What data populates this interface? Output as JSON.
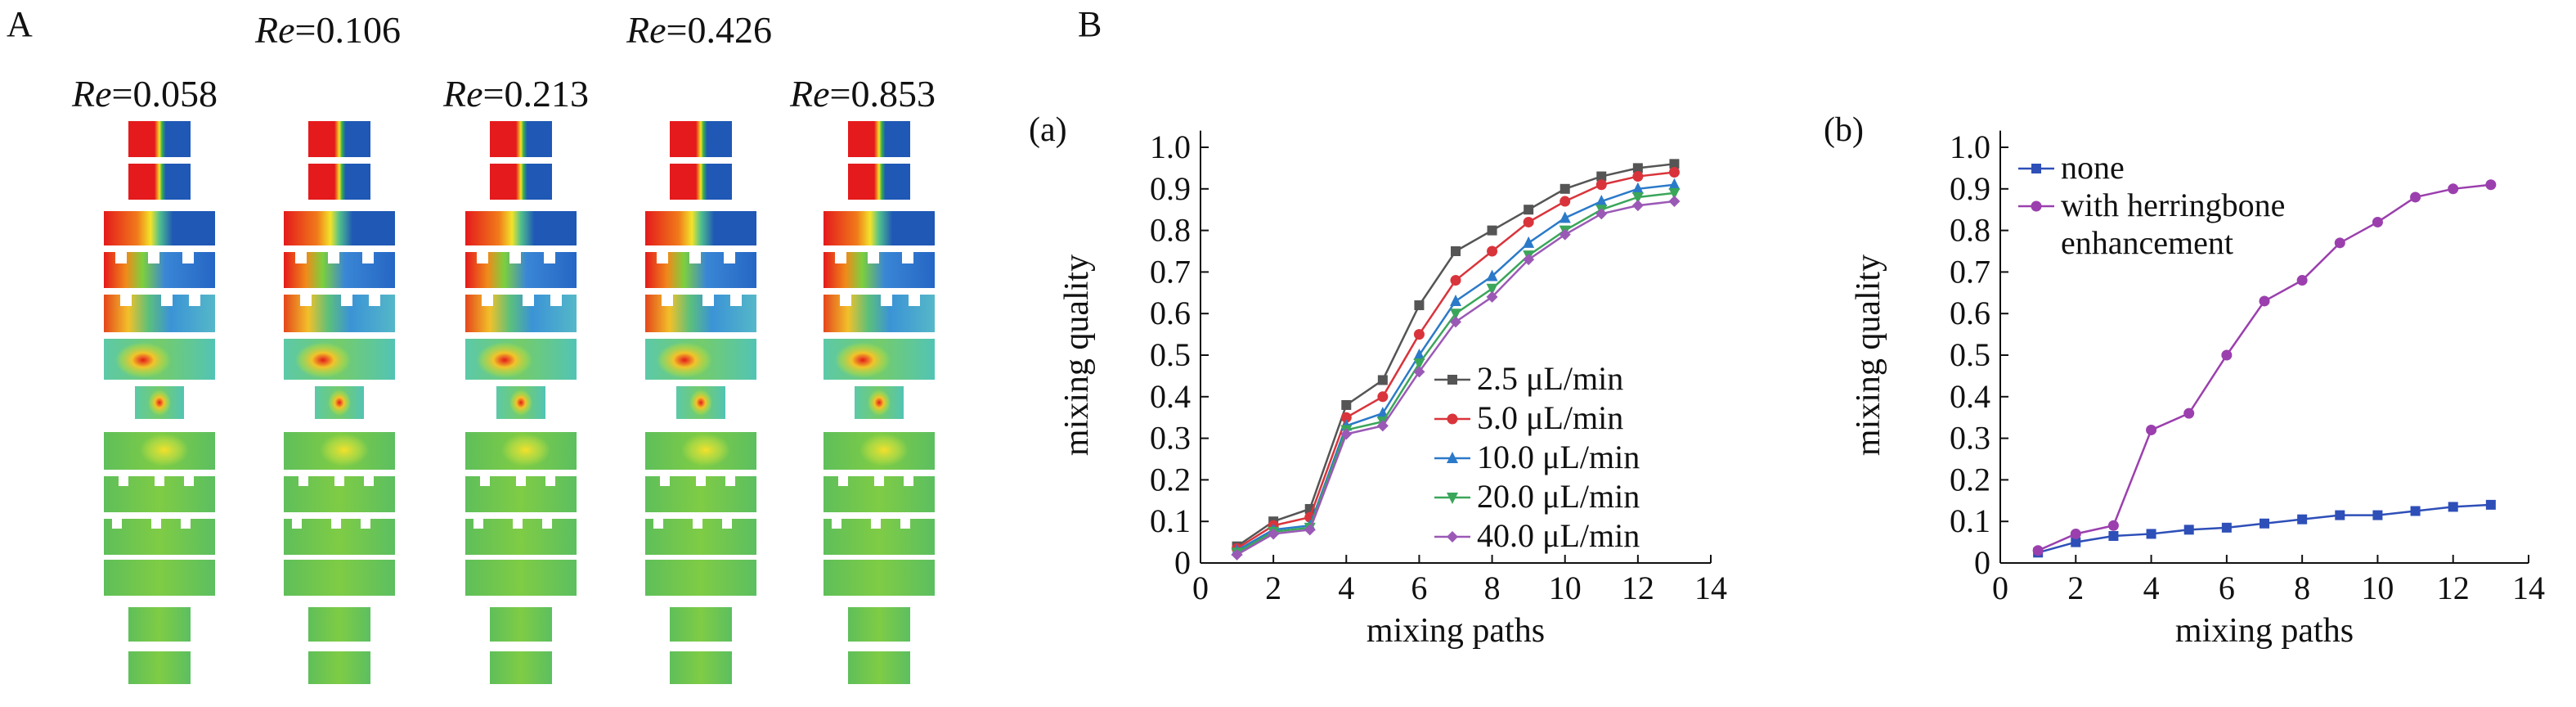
{
  "panel_a": {
    "label": "A",
    "re_values": [
      {
        "prefix": "Re",
        "value": "=0.058"
      },
      {
        "prefix": "Re",
        "value": "=0.106"
      },
      {
        "prefix": "Re",
        "value": "=0.213"
      },
      {
        "prefix": "Re",
        "value": "=0.426"
      },
      {
        "prefix": "Re",
        "value": "=0.853"
      }
    ]
  },
  "panel_b": {
    "label": "B"
  },
  "chart_data": [
    {
      "type": "line",
      "panel_label": "(a)",
      "xlabel": "mixing paths",
      "ylabel": "mixing quality",
      "xlim": [
        0,
        14
      ],
      "ylim": [
        0,
        1.0
      ],
      "x_ticks": [
        "0",
        "2",
        "4",
        "6",
        "8",
        "10",
        "12",
        "14"
      ],
      "y_ticks": [
        "0",
        "0.1",
        "0.2",
        "0.3",
        "0.4",
        "0.5",
        "0.6",
        "0.7",
        "0.8",
        "0.9",
        "1.0"
      ],
      "legend_position": "lower-right",
      "x": [
        1,
        2,
        3,
        4,
        5,
        6,
        7,
        8,
        9,
        10,
        11,
        12,
        13
      ],
      "series": [
        {
          "name": "2.5 μL/min",
          "color": "#555555",
          "marker": "square",
          "values": [
            0.04,
            0.1,
            0.13,
            0.38,
            0.44,
            0.62,
            0.75,
            0.8,
            0.85,
            0.9,
            0.93,
            0.95,
            0.96
          ]
        },
        {
          "name": "5.0 μL/min",
          "color": "#d9343b",
          "marker": "circle",
          "values": [
            0.035,
            0.09,
            0.11,
            0.35,
            0.4,
            0.55,
            0.68,
            0.75,
            0.82,
            0.87,
            0.91,
            0.93,
            0.94
          ]
        },
        {
          "name": "10.0 μL/min",
          "color": "#2b7ac9",
          "marker": "triangle-up",
          "values": [
            0.03,
            0.08,
            0.09,
            0.33,
            0.36,
            0.5,
            0.63,
            0.69,
            0.77,
            0.83,
            0.87,
            0.9,
            0.91
          ]
        },
        {
          "name": "20.0 μL/min",
          "color": "#3aa65a",
          "marker": "triangle-down",
          "values": [
            0.025,
            0.075,
            0.085,
            0.32,
            0.34,
            0.48,
            0.6,
            0.66,
            0.74,
            0.8,
            0.85,
            0.88,
            0.89
          ]
        },
        {
          "name": "40.0 μL/min",
          "color": "#9b59b6",
          "marker": "diamond",
          "values": [
            0.02,
            0.07,
            0.08,
            0.31,
            0.33,
            0.46,
            0.58,
            0.64,
            0.73,
            0.79,
            0.84,
            0.86,
            0.87
          ]
        }
      ]
    },
    {
      "type": "line",
      "panel_label": "(b)",
      "xlabel": "mixing paths",
      "ylabel": "mixing quality",
      "xlim": [
        0,
        14
      ],
      "ylim": [
        0,
        1.0
      ],
      "x_ticks": [
        "0",
        "2",
        "4",
        "6",
        "8",
        "10",
        "12",
        "14"
      ],
      "y_ticks": [
        "0",
        "0.1",
        "0.2",
        "0.3",
        "0.4",
        "0.5",
        "0.6",
        "0.7",
        "0.8",
        "0.9",
        "1.0"
      ],
      "legend_position": "top-left",
      "x": [
        1,
        2,
        3,
        4,
        5,
        6,
        7,
        8,
        9,
        10,
        11,
        12,
        13
      ],
      "series": [
        {
          "name": "none",
          "color": "#2e4fb8",
          "marker": "square",
          "values": [
            0.025,
            0.05,
            0.065,
            0.07,
            0.08,
            0.085,
            0.095,
            0.105,
            0.115,
            0.115,
            0.125,
            0.135,
            0.14
          ]
        },
        {
          "name": "with herringbone|enhancement",
          "color": "#9b3fae",
          "marker": "circle",
          "values": [
            0.03,
            0.07,
            0.09,
            0.32,
            0.36,
            0.5,
            0.63,
            0.68,
            0.77,
            0.82,
            0.88,
            0.9,
            0.91
          ]
        }
      ]
    }
  ]
}
